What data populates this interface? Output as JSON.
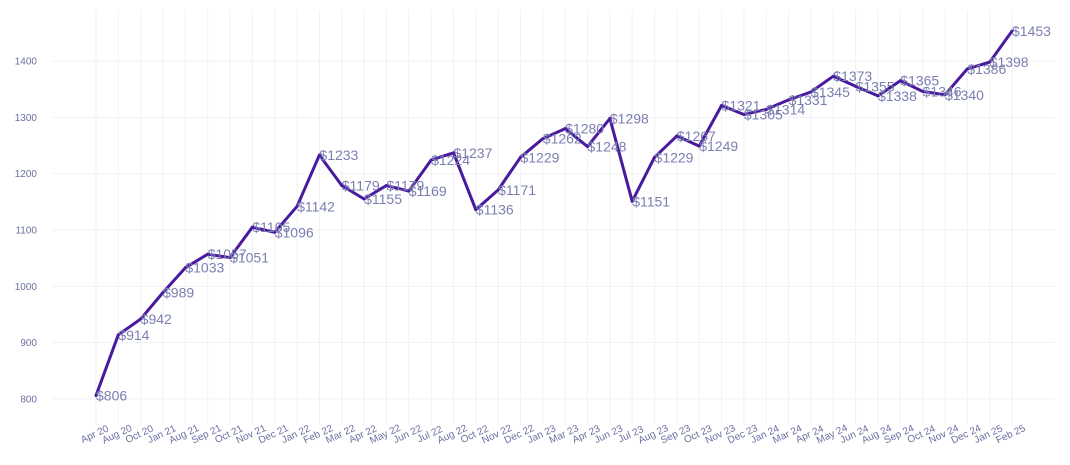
{
  "chart_data": {
    "type": "line",
    "title": "",
    "xlabel": "",
    "ylabel": "",
    "ylim": [
      780,
      1490
    ],
    "yticks": [
      800,
      900,
      1000,
      1100,
      1200,
      1300,
      1400
    ],
    "grid": true,
    "categories": [
      "Apr 20",
      "Aug 20",
      "Oct 20",
      "Jan 21",
      "Aug 21",
      "Sep 21",
      "Oct 21",
      "Nov 21",
      "Dec 21",
      "Jan 22",
      "Feb 22",
      "Mar 22",
      "Apr 22",
      "May 22",
      "Jun 22",
      "Jul 22",
      "Aug 22",
      "Oct 22",
      "Nov 22",
      "Dec 22",
      "Jan 23",
      "Mar 23",
      "Apr 23",
      "Jun 23",
      "Jul 23",
      "Aug 23",
      "Sep 23",
      "Oct 23",
      "Nov 23",
      "Dec 23",
      "Jan 24",
      "Mar 24",
      "Apr 24",
      "May 24",
      "Jun 24",
      "Aug 24",
      "Sep 24",
      "Oct 24",
      "Nov 24",
      "Dec 24",
      "Jan 25",
      "Feb 25"
    ],
    "values": [
      806,
      914,
      942,
      989,
      1033,
      1057,
      1051,
      1105,
      1096,
      1142,
      1233,
      1179,
      1155,
      1179,
      1169,
      1224,
      1237,
      1136,
      1171,
      1229,
      1262,
      1280,
      1248,
      1298,
      1151,
      1229,
      1267,
      1249,
      1321,
      1305,
      1314,
      1331,
      1345,
      1373,
      1355,
      1338,
      1365,
      1346,
      1340,
      1386,
      1398,
      1453
    ],
    "data_labels": [
      "$806",
      "$914",
      "$942",
      "$989",
      "$1033",
      "$1057",
      "$1051",
      "$1105",
      "$1096",
      "$1142",
      "$1233",
      "$1179",
      "$1155",
      "$1179",
      "$1169",
      "$1224",
      "$1237",
      "$1136",
      "$1171",
      "$1229",
      "$1262",
      "$1280",
      "$1248",
      "$1298",
      "$1151",
      "$1229",
      "$1267",
      "$1249",
      "$1321",
      "$1305",
      "$1314",
      "$1331",
      "$1345",
      "$1373",
      "$1355",
      "$1338",
      "$1365",
      "$1346",
      "$1340",
      "$1386",
      "$1398",
      "$1453"
    ],
    "line_color": "#4a1a9e",
    "label_color": "#7a7fb0",
    "tick_color": "#6b6fa0"
  }
}
